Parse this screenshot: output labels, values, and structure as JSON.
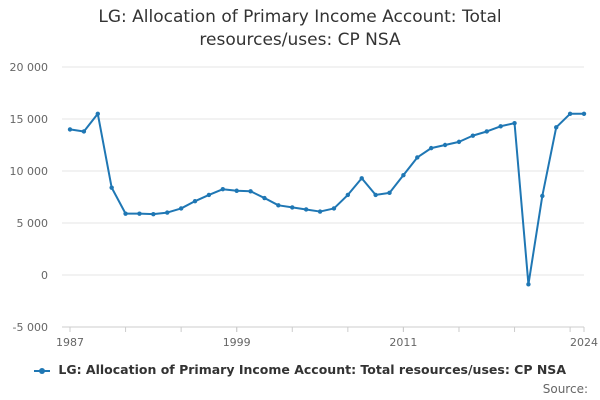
{
  "chart_data": {
    "type": "line",
    "title": "LG: Allocation of Primary Income Account: Total resources/uses: CP NSA",
    "xlabel": "",
    "ylabel": "",
    "x": [
      1987,
      1988,
      1989,
      1990,
      1991,
      1992,
      1993,
      1994,
      1995,
      1996,
      1997,
      1998,
      1999,
      2000,
      2001,
      2002,
      2003,
      2004,
      2005,
      2006,
      2007,
      2008,
      2009,
      2010,
      2011,
      2012,
      2013,
      2014,
      2015,
      2016,
      2017,
      2018,
      2019,
      2020,
      2021,
      2022,
      2023,
      2024
    ],
    "xticks": [
      1987,
      1999,
      2011,
      2024
    ],
    "ylim": [
      -5000,
      20000
    ],
    "yticks": [
      -5000,
      0,
      5000,
      10000,
      15000,
      20000
    ],
    "ytick_labels": [
      "-5 000",
      "0",
      "5 000",
      "10 000",
      "15 000",
      "20 000"
    ],
    "grid": "horizontal",
    "legend_position": "bottom",
    "series": [
      {
        "name": "LG: Allocation of Primary Income Account: Total resources/uses: CP NSA",
        "color": "#1f77b4",
        "values": [
          14000,
          13800,
          15500,
          8400,
          5900,
          5900,
          5850,
          6000,
          6400,
          7100,
          7700,
          8250,
          8100,
          8050,
          7400,
          6700,
          6500,
          6300,
          6100,
          6400,
          7700,
          9300,
          7700,
          7900,
          9600,
          11300,
          12200,
          12500,
          12800,
          13400,
          13800,
          14300,
          14600,
          -900,
          7600,
          14200,
          15500,
          15500
        ]
      }
    ]
  },
  "source_label": "Source:"
}
